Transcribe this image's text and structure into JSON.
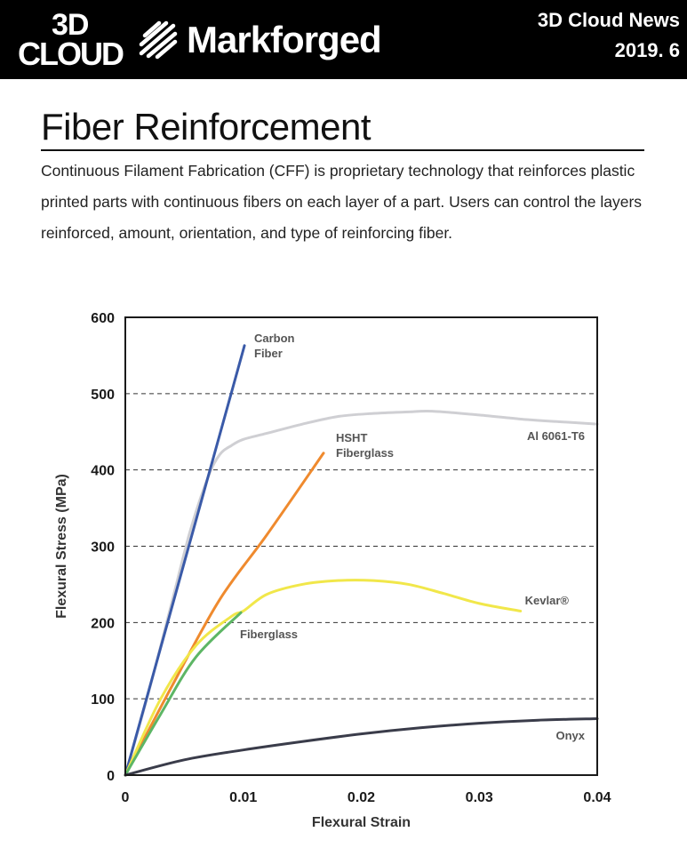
{
  "header": {
    "logo_3dcloud_line1": "3D",
    "logo_3dcloud_line2": "CLOUD",
    "brand": "Markforged",
    "news_line1": "3D Cloud News",
    "news_line2": "2019. 6",
    "icon": "markforged-stripes-icon"
  },
  "article": {
    "title": "Fiber Reinforcement",
    "description": "Continuous Filament Fabrication (CFF) is proprietary technology that reinforces plastic printed parts with continuous fibers on each layer of a part. Users can control the layers reinforced, amount, orientation, and type of reinforcing fiber."
  },
  "chart_data": {
    "type": "line",
    "title": "",
    "xlabel": "Flexural Strain",
    "ylabel": "Flexural Stress (MPa)",
    "xlim": [
      0,
      0.04
    ],
    "ylim": [
      0,
      600
    ],
    "x_ticks": [
      0,
      0.01,
      0.02,
      0.03,
      0.04
    ],
    "x_tick_labels": [
      "0",
      "0.01",
      "0.02",
      "0.03",
      "0.04"
    ],
    "y_ticks": [
      0,
      100,
      200,
      300,
      400,
      500,
      600
    ],
    "y_tick_labels": [
      "0",
      "100",
      "200",
      "300",
      "400",
      "500",
      "600"
    ],
    "grid": "horizontal-dashed",
    "legend": "inline-labels",
    "series": [
      {
        "name": "Al 6061-T6",
        "color": "#cfcfd3",
        "label_lines": [
          "Al 6061-T6"
        ],
        "points": [
          [
            0,
            0
          ],
          [
            0.002,
            110
          ],
          [
            0.004,
            230
          ],
          [
            0.0055,
            320
          ],
          [
            0.007,
            390
          ],
          [
            0.008,
            420
          ],
          [
            0.009,
            432
          ],
          [
            0.01,
            440
          ],
          [
            0.012,
            448
          ],
          [
            0.015,
            460
          ],
          [
            0.018,
            470
          ],
          [
            0.021,
            474
          ],
          [
            0.024,
            476
          ],
          [
            0.026,
            477
          ],
          [
            0.03,
            472
          ],
          [
            0.034,
            466
          ],
          [
            0.037,
            463
          ],
          [
            0.04,
            460
          ]
        ]
      },
      {
        "name": "Carbon Fiber",
        "color": "#3a5aa8",
        "label_lines": [
          "Carbon",
          "Fiber"
        ],
        "points": [
          [
            0,
            0
          ],
          [
            0.0101,
            563
          ]
        ]
      },
      {
        "name": "HSHT Fiberglass",
        "color": "#ef8a2e",
        "label_lines": [
          "HSHT",
          "Fiberglass"
        ],
        "points": [
          [
            0,
            0
          ],
          [
            0.004,
            118
          ],
          [
            0.008,
            230
          ],
          [
            0.012,
            315
          ],
          [
            0.0168,
            422
          ]
        ]
      },
      {
        "name": "Kevlar®",
        "color": "#f1e74a",
        "label_lines": [
          "Kevlar®"
        ],
        "points": [
          [
            0,
            0
          ],
          [
            0.003,
            100
          ],
          [
            0.006,
            170
          ],
          [
            0.009,
            208
          ],
          [
            0.01,
            215
          ],
          [
            0.012,
            237
          ],
          [
            0.015,
            250
          ],
          [
            0.018,
            255
          ],
          [
            0.021,
            255
          ],
          [
            0.024,
            250
          ],
          [
            0.027,
            238
          ],
          [
            0.03,
            225
          ],
          [
            0.0335,
            215
          ]
        ]
      },
      {
        "name": "Fiberglass",
        "color": "#5db665",
        "label_lines": [
          "Fiberglass"
        ],
        "points": [
          [
            0,
            0
          ],
          [
            0.003,
            80
          ],
          [
            0.006,
            155
          ],
          [
            0.0098,
            213
          ]
        ]
      },
      {
        "name": "Onyx",
        "color": "#3a3c4a",
        "label_lines": [
          "Onyx"
        ],
        "points": [
          [
            0,
            0
          ],
          [
            0.005,
            20
          ],
          [
            0.01,
            33
          ],
          [
            0.015,
            44
          ],
          [
            0.02,
            54
          ],
          [
            0.025,
            62
          ],
          [
            0.03,
            68
          ],
          [
            0.035,
            72
          ],
          [
            0.04,
            74
          ]
        ]
      }
    ]
  }
}
